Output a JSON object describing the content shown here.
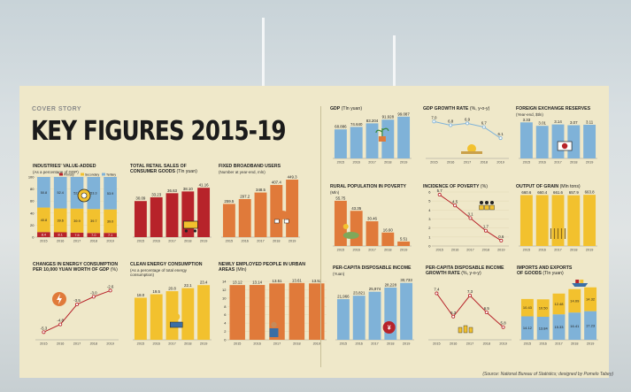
{
  "header": {
    "kicker": "COVER STORY",
    "title": "KEY FIGURES 2015-19",
    "source": "(Source: National Bureau of Statistics; designed by Pomelo Tabey)"
  },
  "colors": {
    "red": "#b7232a",
    "blue": "#7fb2d8",
    "orange": "#e07a3a",
    "yellow": "#f2c12e",
    "panel": "#efe8c9"
  },
  "chart_data": [
    {
      "id": "value-added",
      "type": "bar",
      "title": "INDUSTRIES' VALUE-ADDED",
      "subtitle": "(As a percentage of GDP)",
      "categories": [
        "2015",
        "2016",
        "2017",
        "2018",
        "2019"
      ],
      "series": [
        {
          "name": "Primary",
          "values": [
            8.4,
            8.1,
            7.5,
            7.0,
            7.1
          ]
        },
        {
          "name": "Secondary",
          "values": [
            40.8,
            39.6,
            39.9,
            39.7,
            39.0
          ]
        },
        {
          "name": "Tertiary",
          "values": [
            50.8,
            52.4,
            52.7,
            53.3,
            53.9
          ]
        }
      ],
      "yticks": [
        "0",
        "20",
        "40",
        "60",
        "80",
        "100"
      ],
      "ylim": [
        0,
        100
      ]
    },
    {
      "id": "retail",
      "type": "bar",
      "title": "TOTAL RETAIL SALES OF",
      "title2": "CONSUMER GOODS",
      "unit": "(Tln yuan)",
      "categories": [
        "2015",
        "2016",
        "2017",
        "2018",
        "2019"
      ],
      "values": [
        30.09,
        33.23,
        36.63,
        38.1,
        41.16
      ],
      "labels": [
        "30.09",
        "33.23",
        "36.63",
        "38.10",
        "41.16"
      ],
      "ylim": [
        0,
        45
      ]
    },
    {
      "id": "broadband",
      "type": "bar",
      "title": "FIXED BROADBAND USERS",
      "subtitle": "(Number at year-end, mln)",
      "categories": [
        "2015",
        "2016",
        "2017",
        "2018",
        "2019"
      ],
      "values": [
        259.5,
        297.2,
        348.5,
        407.4,
        449.3
      ],
      "labels": [
        "259.5",
        "297.2",
        "348.5",
        "407.4",
        "449.3"
      ],
      "ylim": [
        0,
        470
      ]
    },
    {
      "id": "gdp",
      "type": "bar",
      "title": "GDP",
      "unit": "(Tln yuan)",
      "categories": [
        "2015",
        "2016",
        "2017",
        "2018",
        "2019"
      ],
      "values": [
        68.886,
        74.64,
        83.204,
        91.928,
        99.087
      ],
      "labels": [
        "68.886",
        "74.640",
        "83.204",
        "91.928",
        "99.087"
      ],
      "ylim": [
        0,
        105
      ]
    },
    {
      "id": "gdp-growth",
      "type": "line",
      "title": "GDP GROWTH RATE",
      "unit": "(%, y-o-y)",
      "categories": [
        "2015",
        "2016",
        "2017",
        "2018",
        "2019"
      ],
      "values": [
        7.0,
        6.8,
        6.9,
        6.7,
        6.1
      ],
      "labels": [
        "7.0",
        "6.8",
        "6.9",
        "6.7",
        "6.1"
      ],
      "ylim": [
        5.0,
        7.4
      ]
    },
    {
      "id": "forex",
      "type": "bar",
      "title": "FOREIGN EXCHANGE RESERVES",
      "subtitle": "(Year-end, $tln)",
      "categories": [
        "2015",
        "2016",
        "2017",
        "2018",
        "2019"
      ],
      "values": [
        3.33,
        3.01,
        3.14,
        3.07,
        3.11
      ],
      "labels": [
        "3.33",
        "3.01",
        "3.14",
        "3.07",
        "3.11"
      ],
      "ylim": [
        0,
        3.6
      ]
    },
    {
      "id": "poverty-pop",
      "type": "bar",
      "title": "RURAL POPULATION IN POVERTY",
      "subtitle": "(Mln)",
      "categories": [
        "2015",
        "2016",
        "2017",
        "2018",
        "2019"
      ],
      "values": [
        55.75,
        43.35,
        30.46,
        16.6,
        5.51
      ],
      "labels": [
        "55.75",
        "43.35",
        "30.46",
        "16.60",
        "5.51"
      ],
      "ylim": [
        0,
        60
      ]
    },
    {
      "id": "poverty-incidence",
      "type": "line",
      "title": "INCIDENCE OF POVERTY",
      "unit": "(%)",
      "categories": [
        "2015",
        "2016",
        "2017",
        "2018",
        "2019"
      ],
      "values": [
        5.7,
        4.5,
        3.1,
        1.7,
        0.6
      ],
      "labels": [
        "5.7",
        "4.5",
        "3.1",
        "1.7",
        "0.6"
      ],
      "yticks": [
        "0",
        "1",
        "2",
        "3",
        "4",
        "5",
        "6"
      ],
      "ylim": [
        0,
        6
      ]
    },
    {
      "id": "grain",
      "type": "bar",
      "title": "OUTPUT OF GRAIN",
      "unit": "(Mln tons)",
      "categories": [
        "2015",
        "2016",
        "2017",
        "2018",
        "2019"
      ],
      "values": [
        660.6,
        660.4,
        661.6,
        657.9,
        663.8
      ],
      "labels": [
        "660.6",
        "660.4",
        "661.6",
        "657.9",
        "663.8"
      ],
      "ylim": [
        0,
        700
      ]
    },
    {
      "id": "energy",
      "type": "line",
      "title": "CHANGES IN ENERGY CONSUMPTION",
      "title2": "PER 10,000 YUAN WORTH OF GDP",
      "unit": "(%)",
      "categories": [
        "2015",
        "2016",
        "2017",
        "2018",
        "2019"
      ],
      "values": [
        -5.3,
        -4.8,
        -3.5,
        -3.0,
        -2.6
      ],
      "labels": [
        "-5.3",
        "-4.8",
        "-3.5",
        "-3.0",
        "-2.6"
      ],
      "ylim": [
        -5.8,
        -2.0
      ]
    },
    {
      "id": "clean-energy",
      "type": "bar",
      "title": "CLEAN ENERGY CONSUMPTION",
      "subtitle": "(As a percentage of total energy",
      "subtitle2": "consumption)",
      "categories": [
        "2015",
        "2016",
        "2017",
        "2018",
        "2019"
      ],
      "values": [
        18.0,
        19.5,
        20.8,
        22.1,
        23.4
      ],
      "labels": [
        "18.0",
        "19.5",
        "20.8",
        "22.1",
        "23.4"
      ],
      "ylim": [
        0,
        25
      ]
    },
    {
      "id": "employed",
      "type": "bar",
      "title": "NEWLY EMPLOYED PEOPLE IN URBAN",
      "title2": "AREAS",
      "unit": "(Mln)",
      "categories": [
        "2015",
        "2016",
        "2017",
        "2018",
        "2019"
      ],
      "values": [
        13.12,
        13.14,
        13.51,
        13.61,
        13.52
      ],
      "labels": [
        "13.12",
        "13.14",
        "13.51",
        "13.61",
        "13.52"
      ],
      "yticks": [
        "0",
        "2",
        "4",
        "6",
        "8",
        "10",
        "12",
        "14"
      ],
      "ylim": [
        0,
        14
      ]
    },
    {
      "id": "income",
      "type": "bar",
      "title": "PER-CAPITA DISPOSABLE INCOME",
      "subtitle": "(Yuan)",
      "categories": [
        "2015",
        "2016",
        "2017",
        "2018",
        "2019"
      ],
      "values": [
        21966,
        23821,
        25974,
        28228,
        30733
      ],
      "labels": [
        "21,966",
        "23,821",
        "25,974",
        "28,228",
        "30,733"
      ],
      "ylim": [
        0,
        33000
      ]
    },
    {
      "id": "income-growth",
      "type": "line",
      "title": "PER-CAPITA DISPOSABLE INCOME",
      "title2": "GROWTH RATE",
      "unit": "(%, y-o-y)",
      "categories": [
        "2015",
        "2016",
        "2017",
        "2018",
        "2019"
      ],
      "values": [
        7.4,
        6.3,
        7.3,
        6.5,
        5.8
      ],
      "labels": [
        "7.4",
        "6.3",
        "7.3",
        "6.5",
        "5.8"
      ],
      "ylim": [
        5.2,
        7.8
      ]
    },
    {
      "id": "trade",
      "type": "bar",
      "title": "IMPORTS AND EXPORTS",
      "title2": "OF GOODS",
      "unit": "(Tln yuan)",
      "categories": [
        "2015",
        "2016",
        "2017",
        "2018",
        "2019"
      ],
      "series": [
        {
          "name": "Exports",
          "values": [
            14.12,
            13.84,
            15.33,
            16.41,
            17.23
          ]
        },
        {
          "name": "Imports",
          "values": [
            10.43,
            10.5,
            12.48,
            14.09,
            14.32
          ]
        }
      ],
      "ylim": [
        0,
        33
      ]
    }
  ],
  "legend_va": [
    "Primary",
    "Secondary",
    "Tertiary"
  ]
}
